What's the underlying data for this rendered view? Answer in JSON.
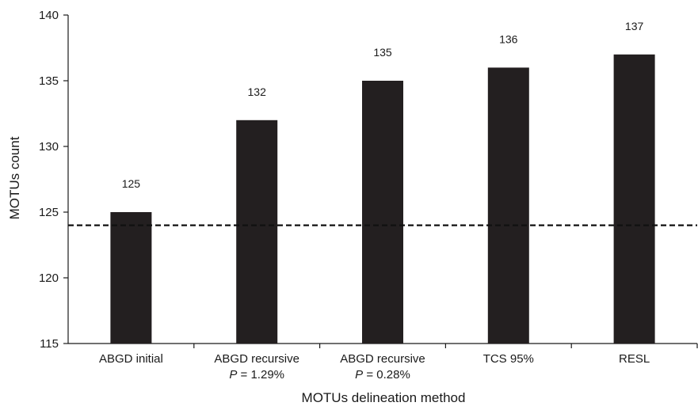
{
  "chart_data": {
    "type": "bar",
    "categories": [
      [
        "ABGD initial"
      ],
      [
        "ABGD recursive",
        "P = 1.29%"
      ],
      [
        "ABGD recursive",
        "P = 0.28%"
      ],
      [
        "TCS 95%"
      ],
      [
        "RESL"
      ]
    ],
    "values": [
      125,
      132,
      135,
      136,
      137
    ],
    "data_labels": [
      "125",
      "132",
      "135",
      "136",
      "137"
    ],
    "title": "",
    "xlabel": "MOTUs delineation method",
    "ylabel": "MOTUs count",
    "ylim": [
      115,
      140
    ],
    "yticks": [
      115,
      120,
      125,
      130,
      135,
      140
    ],
    "reference_line": {
      "value": 124,
      "style": "dashed"
    },
    "bar_color": "#231f20",
    "grid": false,
    "legend": "none"
  }
}
